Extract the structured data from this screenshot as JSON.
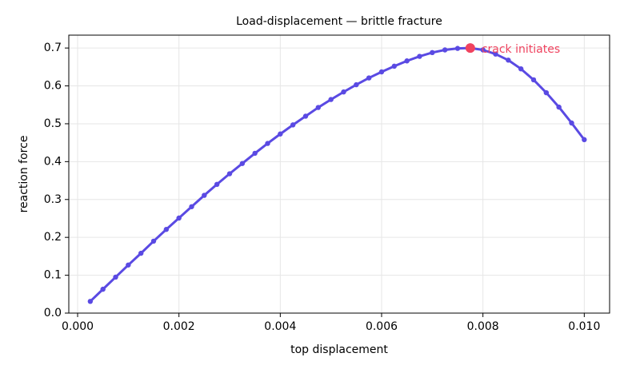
{
  "chart_data": {
    "type": "line",
    "title": "Load-displacement — brittle fracture",
    "x_label": "top displacement",
    "y_label": "reaction force",
    "x": [
      0.00025,
      0.0005,
      0.00075,
      0.001,
      0.00125,
      0.0015,
      0.00175,
      0.002,
      0.00225,
      0.0025,
      0.00275,
      0.003,
      0.00325,
      0.0035,
      0.00375,
      0.004,
      0.00425,
      0.0045,
      0.00475,
      0.005,
      0.00525,
      0.0055,
      0.00575,
      0.006,
      0.00625,
      0.0065,
      0.00675,
      0.007,
      0.00725,
      0.0075,
      0.00775,
      0.008,
      0.00825,
      0.0085,
      0.00875,
      0.009,
      0.00925,
      0.0095,
      0.00975,
      0.01
    ],
    "series": [
      {
        "color": "#5a4ae3",
        "values": [
          0.031,
          0.063,
          0.095,
          0.127,
          0.158,
          0.19,
          0.221,
          0.251,
          0.281,
          0.311,
          0.34,
          0.368,
          0.395,
          0.422,
          0.448,
          0.473,
          0.497,
          0.52,
          0.543,
          0.564,
          0.584,
          0.603,
          0.621,
          0.637,
          0.652,
          0.666,
          0.678,
          0.688,
          0.695,
          0.699,
          0.7,
          0.695,
          0.684,
          0.668,
          0.645,
          0.616,
          0.582,
          0.544,
          0.502,
          0.458
        ]
      }
    ],
    "annotations": [
      {
        "text": "crack initiates",
        "x": 0.00775,
        "y": 0.7,
        "color": "#f0435f"
      }
    ],
    "xlim": [
      -0.000174,
      0.0105
    ],
    "ylim": [
      0,
      0.734
    ],
    "xticks": [
      {
        "value": 0,
        "label": "0.000"
      },
      0.002,
      0.004,
      0.006,
      0.008,
      {
        "value": 0.01,
        "label": "0.010"
      }
    ],
    "yticks": [
      {
        "value": 0,
        "label": "0.0"
      },
      0.1,
      0.2,
      0.3,
      0.4,
      0.5,
      0.6,
      0.7
    ],
    "grid": true
  }
}
